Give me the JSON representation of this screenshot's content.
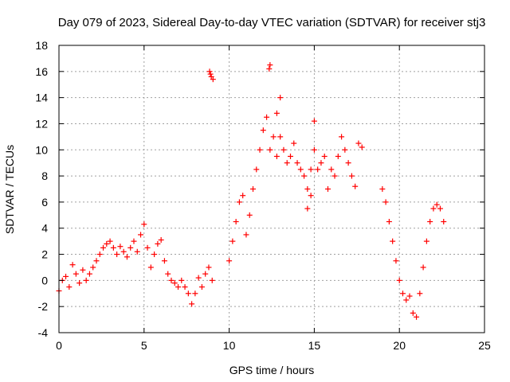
{
  "chart_data": {
    "type": "scatter",
    "title": "Day 079 of 2023, Sidereal Day-to-day VTEC variation (SDTVAR) for receiver stj3",
    "xlabel": "GPS time / hours",
    "ylabel": "SDTVAR / TECUs",
    "xlim": [
      0,
      25
    ],
    "ylim": [
      -4,
      18
    ],
    "xticks": [
      0,
      5,
      10,
      15,
      20,
      25
    ],
    "yticks": [
      -4,
      -2,
      0,
      2,
      4,
      6,
      8,
      10,
      12,
      14,
      16,
      18
    ],
    "grid": true,
    "marker": "plus",
    "color": "#ff0000",
    "series": [
      {
        "name": "SDTVAR",
        "x": [
          0.0,
          0.2,
          0.4,
          0.6,
          0.8,
          1.0,
          1.2,
          1.4,
          1.6,
          1.8,
          2.0,
          2.2,
          2.4,
          2.6,
          2.8,
          3.0,
          3.2,
          3.4,
          3.6,
          3.8,
          4.0,
          4.2,
          4.4,
          4.6,
          4.8,
          5.0,
          5.2,
          5.4,
          5.6,
          5.8,
          6.0,
          6.2,
          6.4,
          6.6,
          6.8,
          7.0,
          7.2,
          7.4,
          7.6,
          7.8,
          8.0,
          8.2,
          8.4,
          8.6,
          8.8,
          9.0,
          8.85,
          8.9,
          8.95,
          9.05,
          10.0,
          10.2,
          10.4,
          10.6,
          10.8,
          11.0,
          11.2,
          11.4,
          11.6,
          11.8,
          12.0,
          12.2,
          12.4,
          12.6,
          12.8,
          13.0,
          12.35,
          12.4,
          12.8,
          13.0,
          13.2,
          13.4,
          13.6,
          13.8,
          14.0,
          14.2,
          14.4,
          14.6,
          14.8,
          15.0,
          14.6,
          14.8,
          15.0,
          15.2,
          15.4,
          15.6,
          15.8,
          16.0,
          16.2,
          16.4,
          16.6,
          16.8,
          17.0,
          17.2,
          17.4,
          17.6,
          17.8,
          19.0,
          19.2,
          19.4,
          19.6,
          19.8,
          20.0,
          20.2,
          20.4,
          20.6,
          20.8,
          21.0,
          21.2,
          21.4,
          21.6,
          21.8,
          22.0,
          22.2,
          22.4,
          22.6
        ],
        "y": [
          -0.8,
          0.0,
          0.3,
          -0.5,
          1.2,
          0.5,
          -0.2,
          0.8,
          0.0,
          0.5,
          1.0,
          1.5,
          2.0,
          2.5,
          2.8,
          3.0,
          2.5,
          2.0,
          2.6,
          2.2,
          1.8,
          2.5,
          3.0,
          2.2,
          3.5,
          4.3,
          2.5,
          1.0,
          2.0,
          2.8,
          3.1,
          1.5,
          0.5,
          0.0,
          -0.2,
          -0.5,
          0.0,
          -0.5,
          -1.0,
          -1.8,
          -1.0,
          0.2,
          -0.5,
          0.5,
          1.0,
          0.0,
          16.0,
          15.8,
          15.6,
          15.4,
          1.5,
          3.0,
          4.5,
          6.0,
          6.5,
          3.5,
          5.0,
          7.0,
          8.5,
          10.0,
          11.5,
          12.5,
          10.0,
          11.0,
          12.8,
          14.0,
          16.2,
          16.5,
          9.5,
          11.0,
          10.0,
          9.0,
          9.5,
          10.5,
          9.0,
          8.5,
          8.0,
          7.0,
          8.5,
          12.2,
          5.5,
          6.5,
          10.0,
          8.5,
          9.0,
          9.5,
          7.0,
          8.5,
          8.0,
          9.5,
          11.0,
          10.0,
          9.0,
          8.0,
          7.2,
          10.5,
          10.2,
          7.0,
          6.0,
          4.5,
          3.0,
          1.5,
          0.0,
          -1.0,
          -1.5,
          -1.2,
          -2.5,
          -2.8,
          -1.0,
          1.0,
          3.0,
          4.5,
          5.5,
          5.8,
          5.5,
          4.5
        ]
      }
    ]
  }
}
